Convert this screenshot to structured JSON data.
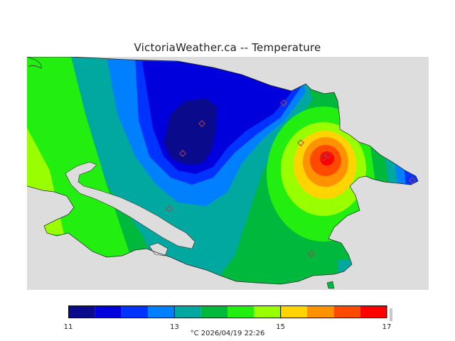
{
  "title": "VictoriaWeather.ca -- Temperature",
  "legend": {
    "colors": [
      "#0a0a8c",
      "#0000dd",
      "#0033ff",
      "#0080ff",
      "#00a8a0",
      "#00b83c",
      "#22ee10",
      "#99ff00",
      "#ffd400",
      "#ff9200",
      "#ff4a00",
      "#ff0000"
    ],
    "range_min": 11,
    "range_max": 17,
    "ticks": [
      "11",
      "13",
      "15",
      "17"
    ],
    "caption": "°C  2026/04/19 22:26"
  },
  "colors": {
    "background_land_out": "#dddddd",
    "station_marker": "#c06060"
  }
}
